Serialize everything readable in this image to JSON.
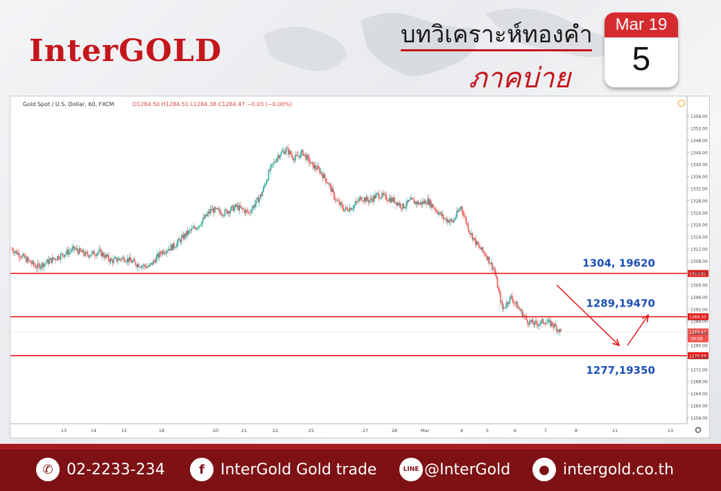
{
  "brand": {
    "logo_text": "InterGOLD"
  },
  "header": {
    "title": "บทวิเคราะห์ทองคำ",
    "subtitle": "ภาคบ่าย"
  },
  "calendar": {
    "month": "Mar 19",
    "day": "5"
  },
  "chart_data": {
    "type": "candlestick",
    "symbol_label": "Gold Spot / U.S. Dollar, 60, FXCM",
    "ohlc_label": "O1284.50  H1284.51  L1284.38  C1284.47  −0.03 (−0.00%)",
    "ylim": [
      1254,
      1358
    ],
    "y_ticks": [
      1356,
      1352,
      1348,
      1344,
      1340,
      1336,
      1332,
      1328,
      1324,
      1320,
      1316,
      1312,
      1308,
      1304,
      1300,
      1296,
      1292,
      1288,
      1284,
      1280,
      1276,
      1272,
      1268,
      1264,
      1260,
      1256
    ],
    "x_ticks": [
      "13",
      "14",
      "15",
      "18",
      "20",
      "21",
      "22",
      "25",
      "27",
      "28",
      "Mar",
      "4",
      "5",
      "6",
      "7",
      "8",
      "11",
      "13"
    ],
    "price_path": [
      [
        0,
        1312
      ],
      [
        3,
        1309
      ],
      [
        6,
        1306
      ],
      [
        9,
        1308
      ],
      [
        12,
        1310
      ],
      [
        15,
        1312
      ],
      [
        18,
        1310
      ],
      [
        21,
        1311
      ],
      [
        24,
        1308
      ],
      [
        27,
        1309
      ],
      [
        30,
        1307
      ],
      [
        33,
        1306
      ],
      [
        36,
        1311
      ],
      [
        39,
        1313
      ],
      [
        42,
        1317
      ],
      [
        45,
        1320
      ],
      [
        48,
        1325
      ],
      [
        51,
        1324
      ],
      [
        54,
        1326
      ],
      [
        57,
        1324
      ],
      [
        60,
        1330
      ],
      [
        62,
        1338
      ],
      [
        64,
        1343
      ],
      [
        66,
        1345
      ],
      [
        68,
        1342
      ],
      [
        70,
        1344
      ],
      [
        72,
        1340
      ],
      [
        74,
        1338
      ],
      [
        76,
        1334
      ],
      [
        78,
        1328
      ],
      [
        80,
        1325
      ],
      [
        82,
        1326
      ],
      [
        84,
        1329
      ],
      [
        86,
        1328
      ],
      [
        88,
        1330
      ],
      [
        90,
        1329
      ],
      [
        92,
        1328
      ],
      [
        94,
        1326
      ],
      [
        96,
        1328
      ],
      [
        98,
        1327
      ],
      [
        100,
        1328
      ],
      [
        102,
        1325
      ],
      [
        104,
        1322
      ],
      [
        106,
        1321
      ],
      [
        108,
        1326
      ],
      [
        110,
        1318
      ],
      [
        112,
        1313
      ],
      [
        114,
        1310
      ],
      [
        116,
        1305
      ],
      [
        117,
        1298
      ],
      [
        118,
        1292
      ],
      [
        120,
        1296
      ],
      [
        122,
        1292
      ],
      [
        124,
        1288
      ],
      [
        126,
        1287
      ],
      [
        128,
        1288
      ],
      [
        130,
        1287
      ],
      [
        132,
        1284.5
      ]
    ],
    "horizontal_levels": [
      {
        "price": 1303.85,
        "tag": "1303.85",
        "label": "1304, 19620"
      },
      {
        "price": 1289.5,
        "tag": "1289.50",
        "label": "1289,19470"
      },
      {
        "price": 1276.59,
        "tag": "1276.59",
        "label": "1277,19350"
      }
    ],
    "current_price": {
      "price": 1284.47,
      "tag": "1284.47",
      "countdown": "59:08"
    },
    "forecast_arrows": [
      {
        "from": [
          131,
          1300
        ],
        "to": [
          146,
          1280
        ]
      },
      {
        "from": [
          148,
          1280
        ],
        "to": [
          153,
          1290
        ]
      }
    ],
    "colors": {
      "up": "#26a69a",
      "down": "#ef5350",
      "level": "#e31b1b",
      "label": "#1c4fb8"
    }
  },
  "footer": {
    "phone": "02-2233-234",
    "facebook": "InterGold Gold trade",
    "line": "@InterGold",
    "website": "intergold.co.th",
    "icons": {
      "phone": "phone-icon",
      "facebook": "facebook-icon",
      "line": "line-icon",
      "web": "globe-icon"
    }
  }
}
